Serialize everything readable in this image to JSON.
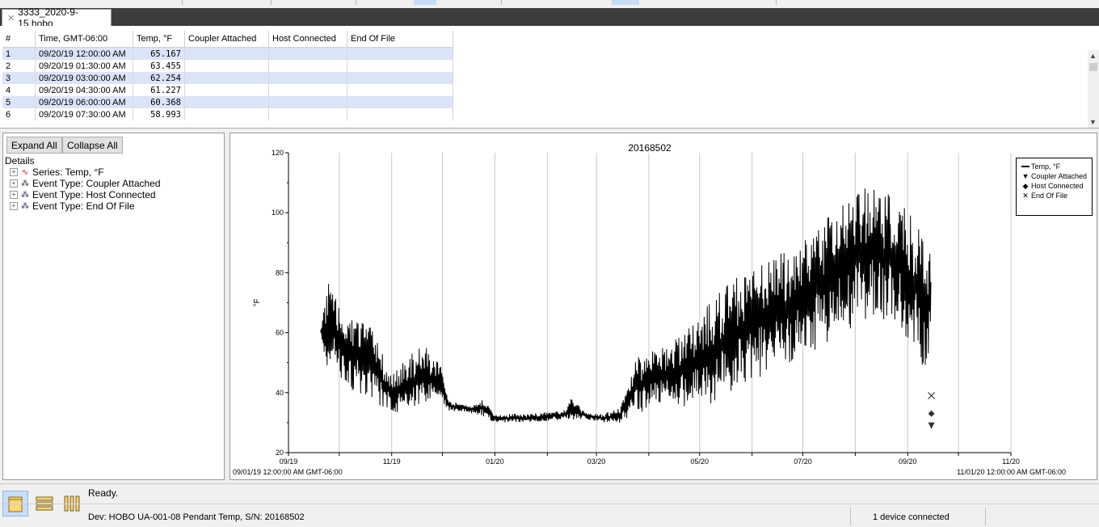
{
  "tab": {
    "title": "3333_2020-9-15.hobo"
  },
  "table": {
    "columns": [
      "#",
      "Time, GMT-06:00",
      "Temp, °F",
      "Coupler Attached",
      "Host Connected",
      "End Of File"
    ],
    "rows": [
      {
        "n": "1",
        "time": "09/20/19 12:00:00 AM",
        "temp": "65.167"
      },
      {
        "n": "2",
        "time": "09/20/19 01:30:00 AM",
        "temp": "63.455"
      },
      {
        "n": "3",
        "time": "09/20/19 03:00:00 AM",
        "temp": "62.254"
      },
      {
        "n": "4",
        "time": "09/20/19 04:30:00 AM",
        "temp": "61.227"
      },
      {
        "n": "5",
        "time": "09/20/19 06:00:00 AM",
        "temp": "60.368"
      },
      {
        "n": "6",
        "time": "09/20/19 07:30:00 AM",
        "temp": "58.993"
      }
    ]
  },
  "details": {
    "expand_all": "Expand All",
    "collapse_all": "Collapse All",
    "heading": "Details",
    "items": [
      "Series: Temp, °F",
      "Event Type: Coupler Attached",
      "Event Type: Host Connected",
      "Event Type: End Of File"
    ]
  },
  "chart_data": {
    "type": "line",
    "title": "20168502",
    "ylabel": "°F",
    "ylim": [
      20,
      120
    ],
    "yticks": [
      20,
      40,
      60,
      80,
      100,
      120
    ],
    "x_tick_labels": [
      "09/19",
      "11/19",
      "01/20",
      "03/20",
      "05/20",
      "07/20",
      "09/20",
      "11/20"
    ],
    "x_start_label": "09/01/19 12:00:00 AM GMT-06:00",
    "x_end_label": "11/01/20 12:00:00 AM GMT-06:00",
    "legend": {
      "position": "top-right",
      "entries": [
        "Temp, °F",
        "Coupler Attached",
        "Host Connected",
        "End Of File"
      ]
    },
    "series_name": "Temp, °F",
    "envelope": [
      {
        "d": "2019-09-20",
        "lo": 56,
        "hi": 65
      },
      {
        "d": "2019-09-25",
        "lo": 47,
        "hi": 78
      },
      {
        "d": "2019-10-01",
        "lo": 45,
        "hi": 68
      },
      {
        "d": "2019-10-10",
        "lo": 40,
        "hi": 66
      },
      {
        "d": "2019-10-20",
        "lo": 38,
        "hi": 62
      },
      {
        "d": "2019-10-25",
        "lo": 35,
        "hi": 55
      },
      {
        "d": "2019-11-01",
        "lo": 33,
        "hi": 46
      },
      {
        "d": "2019-11-10",
        "lo": 34,
        "hi": 52
      },
      {
        "d": "2019-11-20",
        "lo": 36,
        "hi": 56
      },
      {
        "d": "2019-11-30",
        "lo": 37,
        "hi": 50
      },
      {
        "d": "2019-12-05",
        "lo": 34,
        "hi": 37
      },
      {
        "d": "2019-12-20",
        "lo": 33,
        "hi": 36
      },
      {
        "d": "2019-12-25",
        "lo": 32,
        "hi": 38
      },
      {
        "d": "2020-01-01",
        "lo": 30,
        "hi": 33
      },
      {
        "d": "2020-01-20",
        "lo": 30,
        "hi": 33
      },
      {
        "d": "2020-02-10",
        "lo": 31,
        "hi": 34
      },
      {
        "d": "2020-02-15",
        "lo": 31,
        "hi": 38
      },
      {
        "d": "2020-02-25",
        "lo": 31,
        "hi": 33
      },
      {
        "d": "2020-03-05",
        "lo": 30,
        "hi": 33
      },
      {
        "d": "2020-03-15",
        "lo": 30,
        "hi": 35
      },
      {
        "d": "2020-03-25",
        "lo": 33,
        "hi": 52
      },
      {
        "d": "2020-04-10",
        "lo": 36,
        "hi": 56
      },
      {
        "d": "2020-04-25",
        "lo": 35,
        "hi": 62
      },
      {
        "d": "2020-05-10",
        "lo": 36,
        "hi": 72
      },
      {
        "d": "2020-05-25",
        "lo": 42,
        "hi": 80
      },
      {
        "d": "2020-06-10",
        "lo": 45,
        "hi": 85
      },
      {
        "d": "2020-06-25",
        "lo": 48,
        "hi": 88
      },
      {
        "d": "2020-07-10",
        "lo": 55,
        "hi": 96
      },
      {
        "d": "2020-07-25",
        "lo": 60,
        "hi": 105
      },
      {
        "d": "2020-08-10",
        "lo": 65,
        "hi": 112
      },
      {
        "d": "2020-08-25",
        "lo": 62,
        "hi": 105
      },
      {
        "d": "2020-09-05",
        "lo": 55,
        "hi": 98
      },
      {
        "d": "2020-09-12",
        "lo": 45,
        "hi": 90
      },
      {
        "d": "2020-09-15",
        "lo": 60,
        "hi": 85
      }
    ],
    "events": {
      "end_of_file": {
        "d": "2020-09-15",
        "y": 39
      },
      "host_connected": {
        "d": "2020-09-15",
        "y": 33
      },
      "coupler_attached": {
        "d": "2020-09-15",
        "y": 29
      }
    }
  },
  "status": {
    "ready": "Ready.",
    "device": "Dev: HOBO UA-001-08 Pendant Temp, S/N: 20168502",
    "connected": "1 device connected"
  }
}
